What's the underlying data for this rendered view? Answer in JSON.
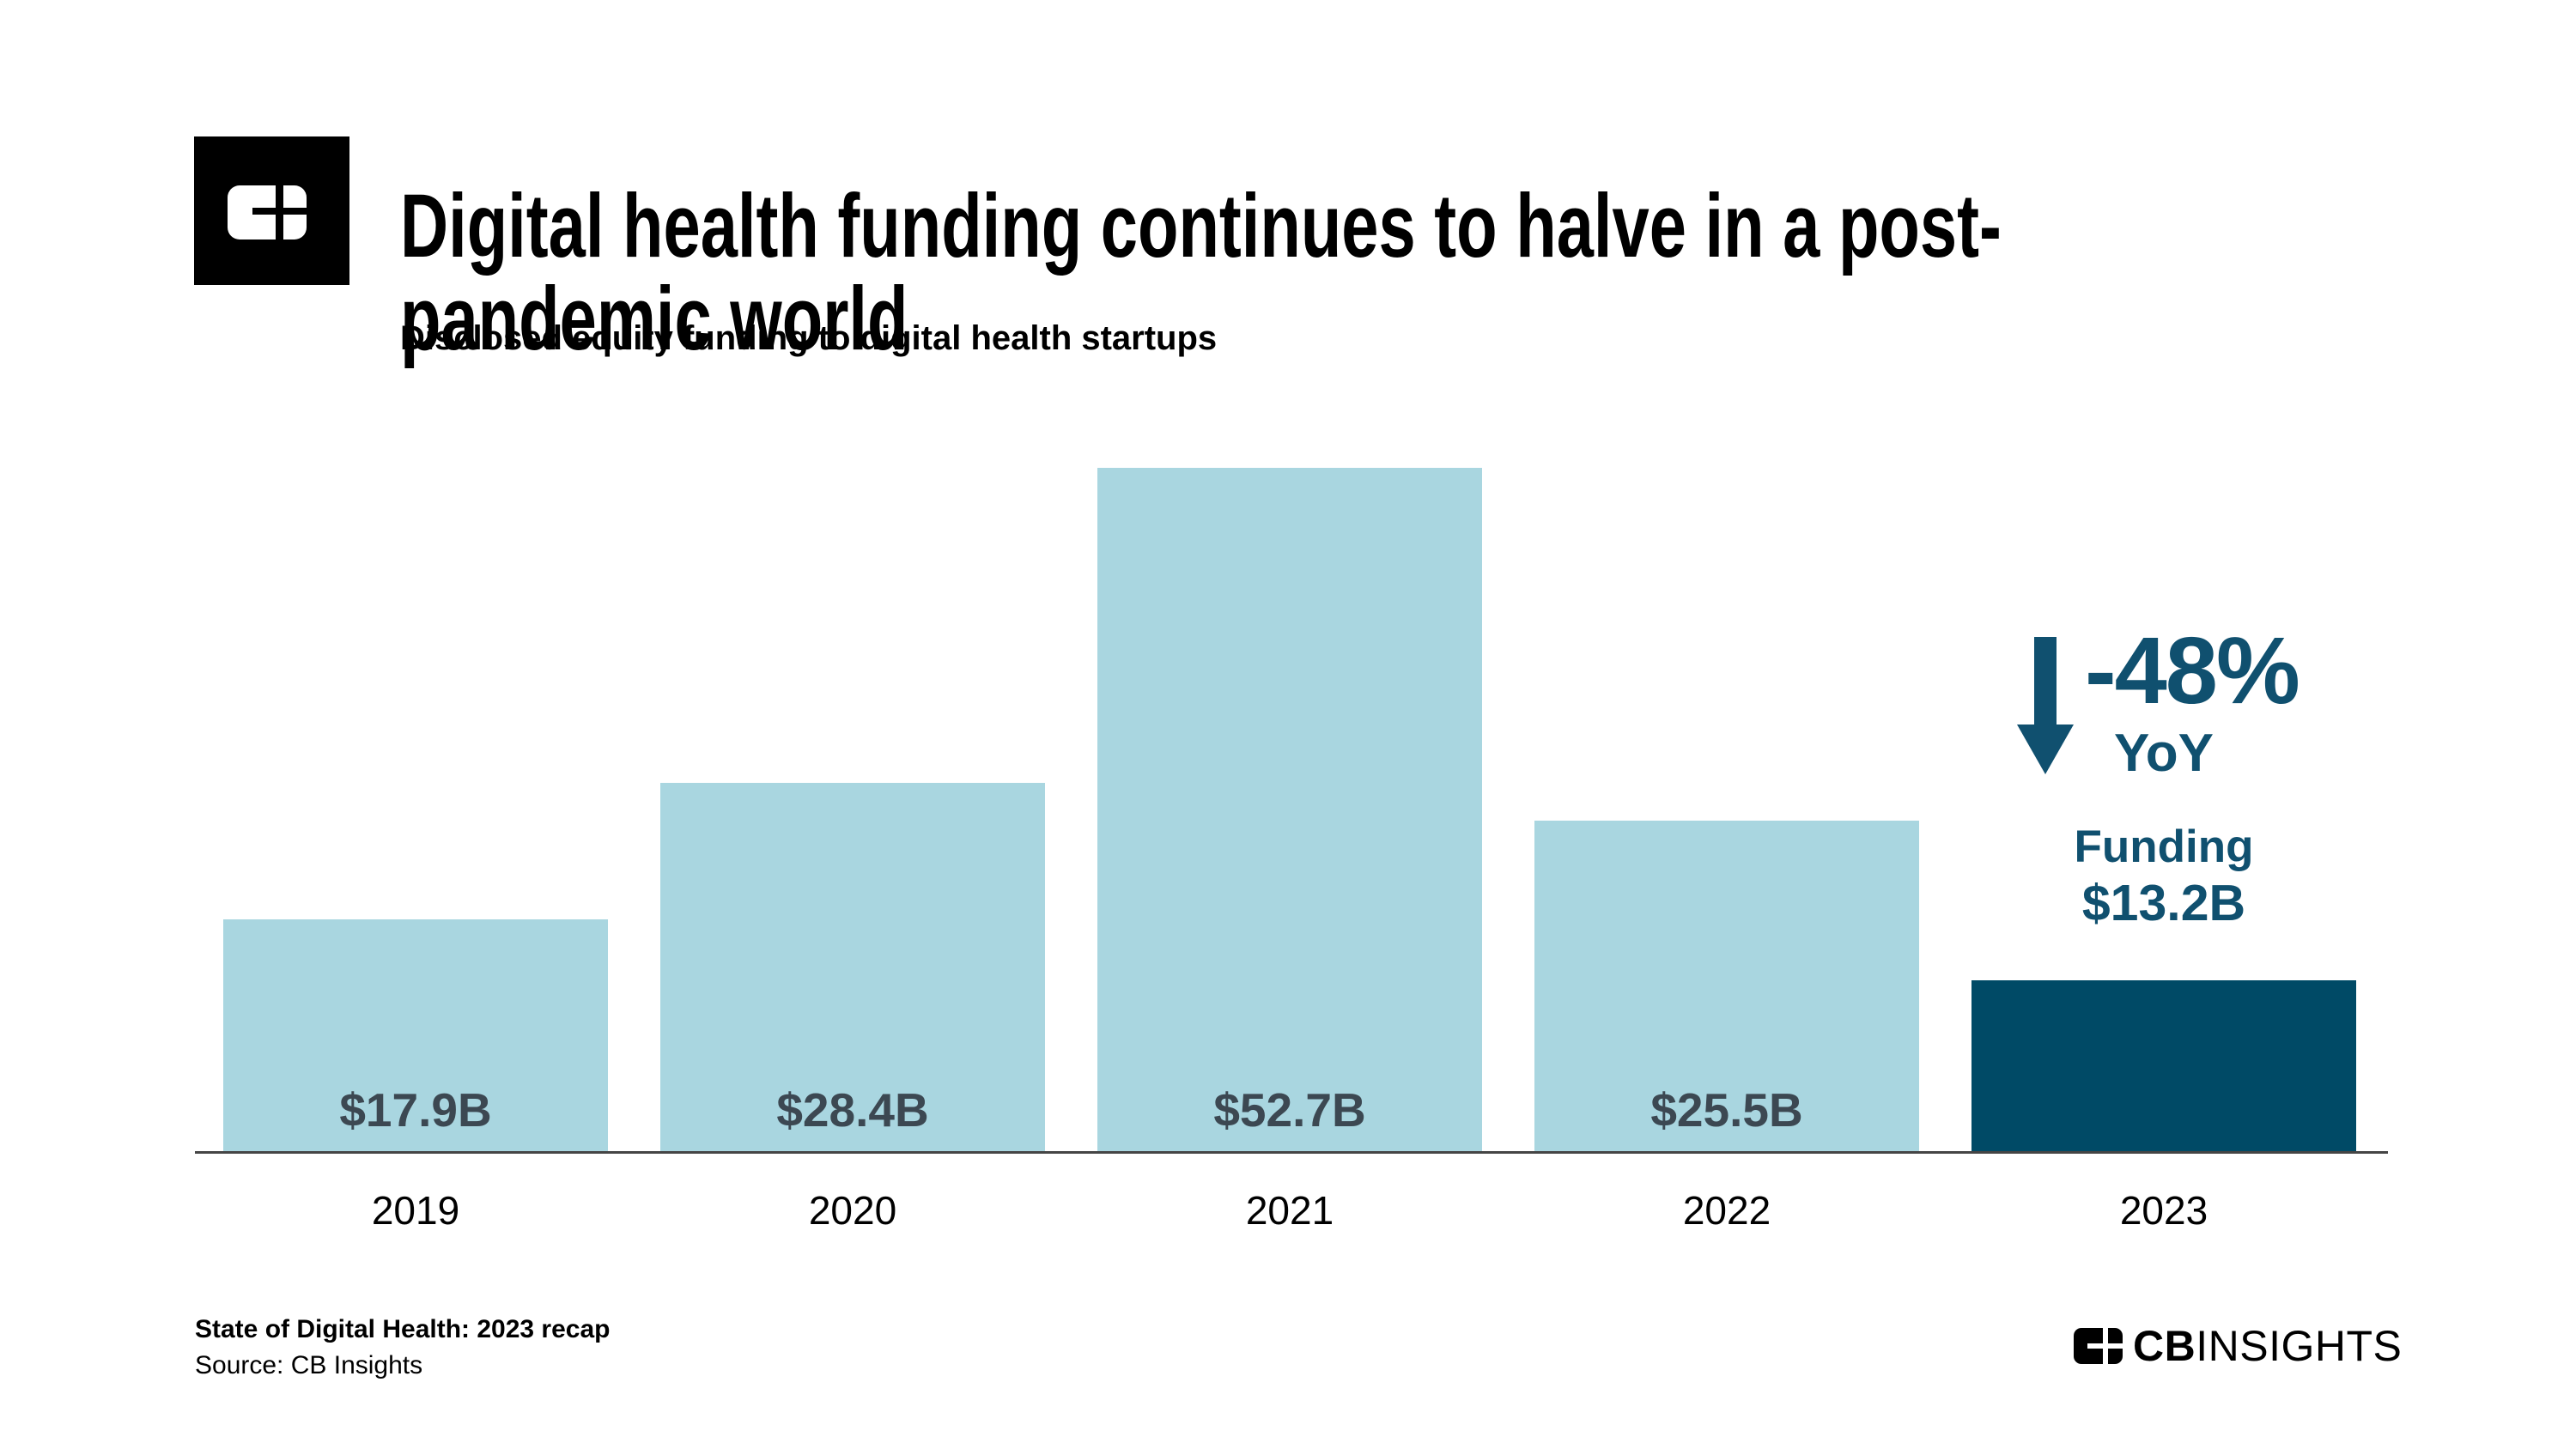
{
  "header": {
    "title_lines": [
      "Digital health funding continues to halve in a post-",
      "pandemic world"
    ],
    "subtitle": "Disclosed equity funding to digital health startups",
    "logo": "cb-insights-square-mark"
  },
  "chart_data": {
    "type": "bar",
    "title": "Digital health funding continues to halve in a post-pandemic world",
    "subtitle": "Disclosed equity funding to digital health startups",
    "categories": [
      "2019",
      "2020",
      "2021",
      "2022",
      "2023"
    ],
    "values": [
      17.9,
      28.4,
      52.7,
      25.5,
      13.2
    ],
    "value_labels": [
      "$17.9B",
      "$28.4B",
      "$52.7B",
      "$25.5B",
      "$13.2B"
    ],
    "unit": "$B",
    "ylim": [
      0,
      52.7
    ],
    "grid": false,
    "legend": false,
    "yaxis_visible": false,
    "bar_color": "#A9D6E0",
    "highlight_index": 4,
    "highlight_color": "#004A66",
    "value_label_color": "#3C4852",
    "annotation": {
      "icon": "down-arrow-icon",
      "change": "-48%",
      "period": "YoY",
      "callout_title": "Funding",
      "callout_value": "$13.2B",
      "color": "#10506F"
    }
  },
  "footer": {
    "report_title": "State of Digital Health: 2023 recap",
    "source": "Source: CB Insights",
    "brand_cb": "CB",
    "brand_insights": "INSIGHTS"
  }
}
